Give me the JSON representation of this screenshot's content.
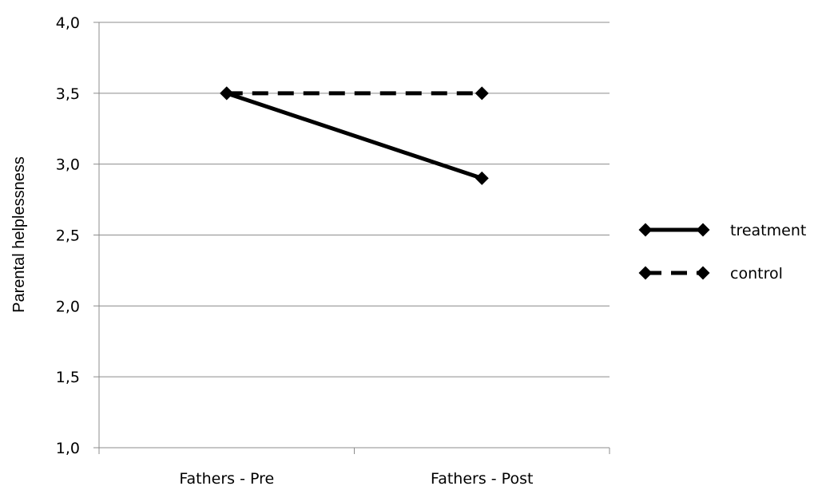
{
  "chart_data": {
    "type": "line",
    "title": "",
    "xlabel": "",
    "ylabel": "Parental helplessness",
    "categories": [
      "Fathers - Pre",
      "Fathers - Post"
    ],
    "ylim": [
      1.0,
      4.0
    ],
    "yticks": [
      "1,0",
      "1,5",
      "2,0",
      "2,5",
      "3,0",
      "3,5",
      "4,0"
    ],
    "ytick_values": [
      1.0,
      1.5,
      2.0,
      2.5,
      3.0,
      3.5,
      4.0
    ],
    "grid": true,
    "legend_position": "right",
    "series": [
      {
        "name": "treatment",
        "values": [
          3.5,
          2.9
        ],
        "line_style": "solid",
        "marker": "diamond",
        "color": "#000000"
      },
      {
        "name": "control",
        "values": [
          3.5,
          3.5
        ],
        "line_style": "dashed",
        "marker": "diamond",
        "color": "#000000"
      }
    ]
  }
}
